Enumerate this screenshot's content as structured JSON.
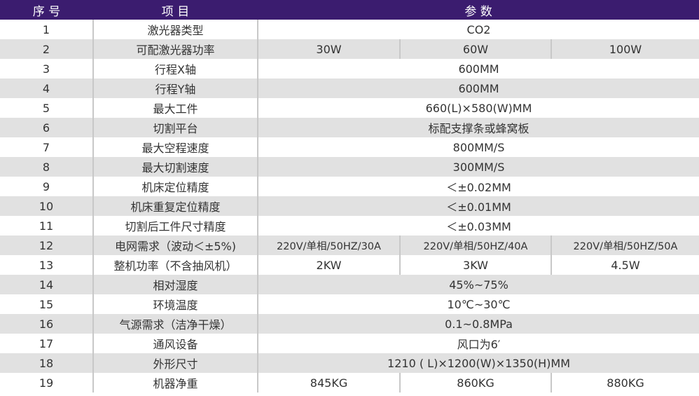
{
  "colors": {
    "header_bg": "#3b1c6f",
    "alt_row": "#e1e1e1"
  },
  "header": {
    "index": "序 号",
    "item": "项  目",
    "params": "参   数"
  },
  "rows": [
    {
      "no": "1",
      "item": "激光器类型",
      "values": [
        "CO2"
      ]
    },
    {
      "no": "2",
      "item": "可配激光器功率",
      "values": [
        "30W",
        "60W",
        "100W"
      ]
    },
    {
      "no": "3",
      "item": "行程X轴",
      "values": [
        "600MM"
      ]
    },
    {
      "no": "4",
      "item": "行程Y轴",
      "values": [
        "600MM"
      ]
    },
    {
      "no": "5",
      "item": "最大工件",
      "values": [
        "660(L)×580(W)MM"
      ]
    },
    {
      "no": "6",
      "item": "切割平台",
      "values": [
        "标配支撑条或蜂窝板"
      ]
    },
    {
      "no": "7",
      "item": "最大空程速度",
      "values": [
        "800MM/S"
      ]
    },
    {
      "no": "8",
      "item": "最大切割速度",
      "values": [
        "300MM/S"
      ]
    },
    {
      "no": "9",
      "item": "机床定位精度",
      "values": [
        "＜±0.02MM"
      ]
    },
    {
      "no": "10",
      "item": "机床重复定位精度",
      "values": [
        "＜±0.01MM"
      ]
    },
    {
      "no": "11",
      "item": "切割后工件尺寸精度",
      "values": [
        "＜±0.03MM"
      ]
    },
    {
      "no": "12",
      "item": "电网需求（波动＜±5%)",
      "values": [
        "220V/单相/50HZ/30A",
        "220V/单相/50HZ/40A",
        "220V/单相/50HZ/50A"
      ]
    },
    {
      "no": "13",
      "item": "整机功率（不含抽风机）",
      "values": [
        "2KW",
        "3KW",
        "4.5W"
      ]
    },
    {
      "no": "14",
      "item": "相对湿度",
      "values": [
        "45%~75%"
      ]
    },
    {
      "no": "15",
      "item": "环境温度",
      "values": [
        "10℃~30℃"
      ]
    },
    {
      "no": "16",
      "item": "气源需求（洁净干燥）",
      "values": [
        "0.1~0.8MPa"
      ]
    },
    {
      "no": "17",
      "item": "通风设备",
      "values": [
        "风口为6′"
      ]
    },
    {
      "no": "18",
      "item": "外形尺寸",
      "values": [
        "1210 ( L)×1200(W)×1350(H)MM"
      ]
    },
    {
      "no": "19",
      "item": "机器净重",
      "values": [
        "845KG",
        "860KG",
        "880KG"
      ]
    }
  ]
}
